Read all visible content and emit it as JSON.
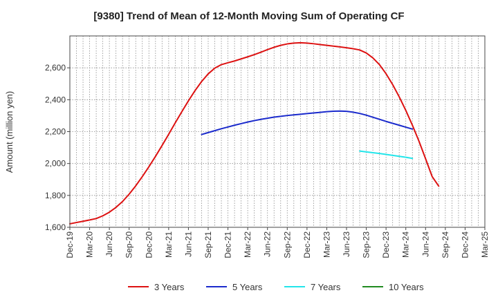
{
  "chart_data": {
    "type": "line",
    "title": "[9380]  Trend of Mean of 12-Month Moving Sum of Operating CF",
    "xlabel": "",
    "ylabel": "Amount (million yen)",
    "ylim": [
      1600,
      2800
    ],
    "yticks": [
      1600,
      1800,
      2000,
      2200,
      2400,
      2600
    ],
    "ytick_labels": [
      "1,600",
      "1,800",
      "2,000",
      "2,200",
      "2,400",
      "2,600"
    ],
    "grid": true,
    "legend_position": "bottom",
    "x_range": [
      "Dec-19",
      "Mar-25"
    ],
    "x_ticks": [
      "Dec-19",
      "Mar-20",
      "Jun-20",
      "Sep-20",
      "Dec-20",
      "Mar-21",
      "Jun-21",
      "Sep-21",
      "Dec-21",
      "Mar-22",
      "Jun-22",
      "Sep-22",
      "Dec-22",
      "Mar-23",
      "Jun-23",
      "Sep-23",
      "Dec-23",
      "Mar-24",
      "Jun-24",
      "Sep-24",
      "Dec-24",
      "Mar-25"
    ],
    "series": [
      {
        "name": "3 Years",
        "color": "#dd1111",
        "start": "Dec-19",
        "values": [
          1622,
          1630,
          1638,
          1646,
          1655,
          1672,
          1695,
          1725,
          1762,
          1808,
          1860,
          1918,
          1980,
          2045,
          2113,
          2183,
          2255,
          2325,
          2393,
          2457,
          2514,
          2562,
          2598,
          2620,
          2632,
          2643,
          2656,
          2669,
          2683,
          2698,
          2714,
          2729,
          2741,
          2750,
          2755,
          2757,
          2755,
          2751,
          2746,
          2741,
          2736,
          2731,
          2726,
          2720,
          2712,
          2693,
          2662,
          2620,
          2563,
          2495,
          2418,
          2333,
          2240,
          2140,
          2030,
          1918,
          1858
        ]
      },
      {
        "name": "5 Years",
        "color": "#1a2acc",
        "start": "Aug-21",
        "values": [
          2182,
          2194,
          2206,
          2218,
          2229,
          2240,
          2250,
          2260,
          2269,
          2277,
          2284,
          2291,
          2296,
          2301,
          2305,
          2309,
          2313,
          2317,
          2321,
          2325,
          2328,
          2329,
          2327,
          2322,
          2314,
          2303,
          2290,
          2277,
          2264,
          2252,
          2240,
          2228,
          2216
        ]
      },
      {
        "name": "7 Years",
        "color": "#22e5ea",
        "start": "Aug-23",
        "values": [
          2078,
          2073,
          2068,
          2063,
          2057,
          2051,
          2045,
          2039,
          2032
        ]
      },
      {
        "name": "10 Years",
        "color": "#1f8a1f",
        "start": "Aug-23",
        "values": []
      }
    ]
  }
}
